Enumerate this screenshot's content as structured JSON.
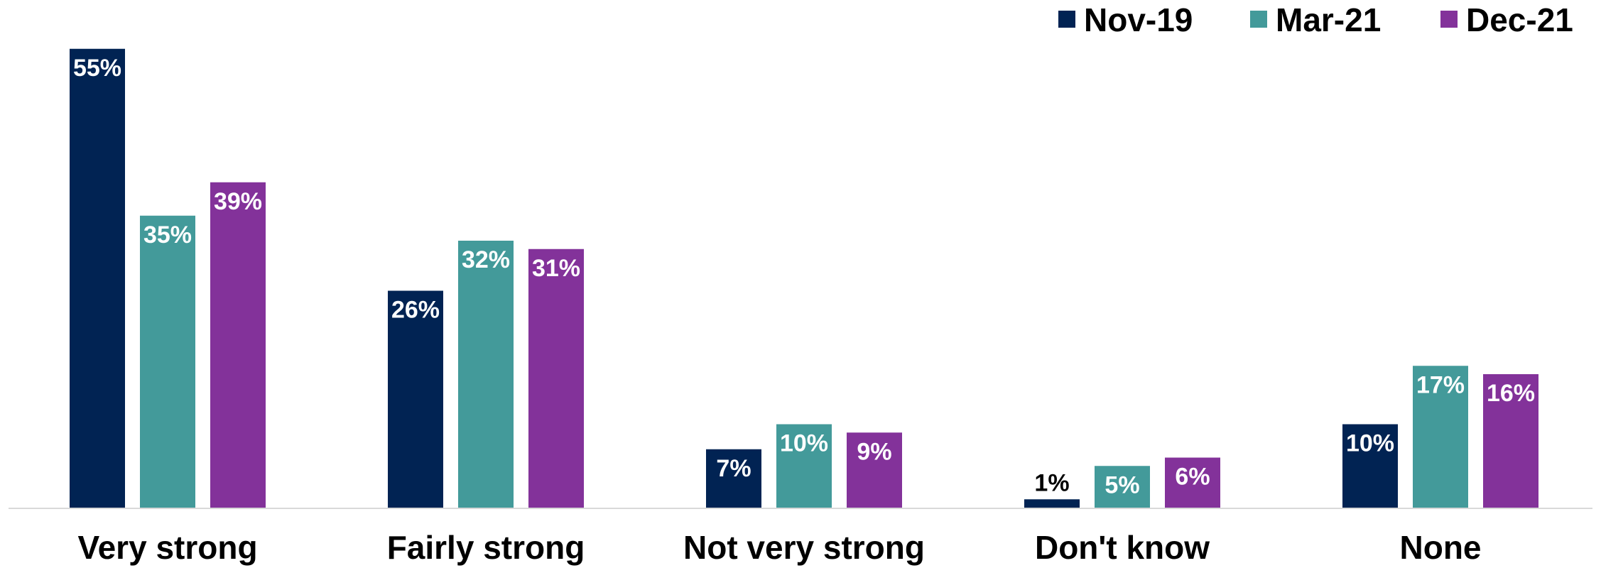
{
  "chart_data": {
    "type": "bar",
    "categories": [
      "Very strong",
      "Fairly strong",
      "Not very strong",
      "Don't know",
      "None"
    ],
    "series": [
      {
        "name": "Nov-19",
        "color": "#012353",
        "values": [
          55,
          26,
          7,
          1,
          10
        ],
        "labels": [
          "55%",
          "26%",
          "7%",
          "1%",
          "10%"
        ]
      },
      {
        "name": "Mar-21",
        "color": "#439A9A",
        "values": [
          35,
          32,
          10,
          5,
          17
        ],
        "labels": [
          "35%",
          "32%",
          "10%",
          "5%",
          "17%"
        ]
      },
      {
        "name": "Dec-21",
        "color": "#83329A",
        "values": [
          39,
          31,
          9,
          6,
          16
        ],
        "labels": [
          "39%",
          "31%",
          "9%",
          "6%",
          "16%"
        ]
      }
    ],
    "ylim": [
      0,
      58
    ],
    "legend": "top-right",
    "grid": false
  }
}
